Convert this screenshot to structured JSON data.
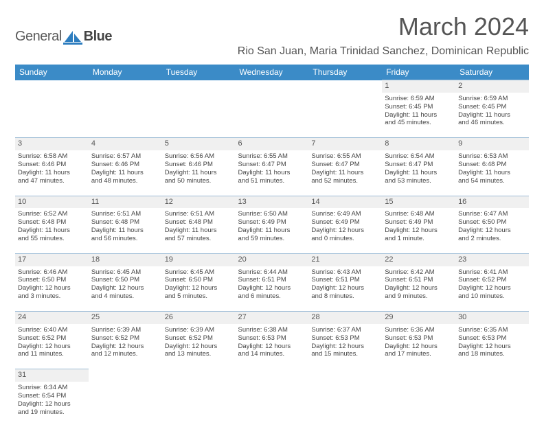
{
  "logo": {
    "part1": "General",
    "part2": "Blue",
    "icon_color": "#2d7dbf"
  },
  "title": "March 2024",
  "subtitle": "Rio San Juan, Maria Trinidad Sanchez, Dominican Republic",
  "header_bg": "#3b8bc7",
  "daynum_bg": "#f0f0f0",
  "border_color": "#9dbcd6",
  "days": [
    "Sunday",
    "Monday",
    "Tuesday",
    "Wednesday",
    "Thursday",
    "Friday",
    "Saturday"
  ],
  "weeks": [
    [
      null,
      null,
      null,
      null,
      null,
      {
        "n": "1",
        "sr": "Sunrise: 6:59 AM",
        "ss": "Sunset: 6:45 PM",
        "d1": "Daylight: 11 hours",
        "d2": "and 45 minutes."
      },
      {
        "n": "2",
        "sr": "Sunrise: 6:59 AM",
        "ss": "Sunset: 6:45 PM",
        "d1": "Daylight: 11 hours",
        "d2": "and 46 minutes."
      }
    ],
    [
      {
        "n": "3",
        "sr": "Sunrise: 6:58 AM",
        "ss": "Sunset: 6:46 PM",
        "d1": "Daylight: 11 hours",
        "d2": "and 47 minutes."
      },
      {
        "n": "4",
        "sr": "Sunrise: 6:57 AM",
        "ss": "Sunset: 6:46 PM",
        "d1": "Daylight: 11 hours",
        "d2": "and 48 minutes."
      },
      {
        "n": "5",
        "sr": "Sunrise: 6:56 AM",
        "ss": "Sunset: 6:46 PM",
        "d1": "Daylight: 11 hours",
        "d2": "and 50 minutes."
      },
      {
        "n": "6",
        "sr": "Sunrise: 6:55 AM",
        "ss": "Sunset: 6:47 PM",
        "d1": "Daylight: 11 hours",
        "d2": "and 51 minutes."
      },
      {
        "n": "7",
        "sr": "Sunrise: 6:55 AM",
        "ss": "Sunset: 6:47 PM",
        "d1": "Daylight: 11 hours",
        "d2": "and 52 minutes."
      },
      {
        "n": "8",
        "sr": "Sunrise: 6:54 AM",
        "ss": "Sunset: 6:47 PM",
        "d1": "Daylight: 11 hours",
        "d2": "and 53 minutes."
      },
      {
        "n": "9",
        "sr": "Sunrise: 6:53 AM",
        "ss": "Sunset: 6:48 PM",
        "d1": "Daylight: 11 hours",
        "d2": "and 54 minutes."
      }
    ],
    [
      {
        "n": "10",
        "sr": "Sunrise: 6:52 AM",
        "ss": "Sunset: 6:48 PM",
        "d1": "Daylight: 11 hours",
        "d2": "and 55 minutes."
      },
      {
        "n": "11",
        "sr": "Sunrise: 6:51 AM",
        "ss": "Sunset: 6:48 PM",
        "d1": "Daylight: 11 hours",
        "d2": "and 56 minutes."
      },
      {
        "n": "12",
        "sr": "Sunrise: 6:51 AM",
        "ss": "Sunset: 6:48 PM",
        "d1": "Daylight: 11 hours",
        "d2": "and 57 minutes."
      },
      {
        "n": "13",
        "sr": "Sunrise: 6:50 AM",
        "ss": "Sunset: 6:49 PM",
        "d1": "Daylight: 11 hours",
        "d2": "and 59 minutes."
      },
      {
        "n": "14",
        "sr": "Sunrise: 6:49 AM",
        "ss": "Sunset: 6:49 PM",
        "d1": "Daylight: 12 hours",
        "d2": "and 0 minutes."
      },
      {
        "n": "15",
        "sr": "Sunrise: 6:48 AM",
        "ss": "Sunset: 6:49 PM",
        "d1": "Daylight: 12 hours",
        "d2": "and 1 minute."
      },
      {
        "n": "16",
        "sr": "Sunrise: 6:47 AM",
        "ss": "Sunset: 6:50 PM",
        "d1": "Daylight: 12 hours",
        "d2": "and 2 minutes."
      }
    ],
    [
      {
        "n": "17",
        "sr": "Sunrise: 6:46 AM",
        "ss": "Sunset: 6:50 PM",
        "d1": "Daylight: 12 hours",
        "d2": "and 3 minutes."
      },
      {
        "n": "18",
        "sr": "Sunrise: 6:45 AM",
        "ss": "Sunset: 6:50 PM",
        "d1": "Daylight: 12 hours",
        "d2": "and 4 minutes."
      },
      {
        "n": "19",
        "sr": "Sunrise: 6:45 AM",
        "ss": "Sunset: 6:50 PM",
        "d1": "Daylight: 12 hours",
        "d2": "and 5 minutes."
      },
      {
        "n": "20",
        "sr": "Sunrise: 6:44 AM",
        "ss": "Sunset: 6:51 PM",
        "d1": "Daylight: 12 hours",
        "d2": "and 6 minutes."
      },
      {
        "n": "21",
        "sr": "Sunrise: 6:43 AM",
        "ss": "Sunset: 6:51 PM",
        "d1": "Daylight: 12 hours",
        "d2": "and 8 minutes."
      },
      {
        "n": "22",
        "sr": "Sunrise: 6:42 AM",
        "ss": "Sunset: 6:51 PM",
        "d1": "Daylight: 12 hours",
        "d2": "and 9 minutes."
      },
      {
        "n": "23",
        "sr": "Sunrise: 6:41 AM",
        "ss": "Sunset: 6:52 PM",
        "d1": "Daylight: 12 hours",
        "d2": "and 10 minutes."
      }
    ],
    [
      {
        "n": "24",
        "sr": "Sunrise: 6:40 AM",
        "ss": "Sunset: 6:52 PM",
        "d1": "Daylight: 12 hours",
        "d2": "and 11 minutes."
      },
      {
        "n": "25",
        "sr": "Sunrise: 6:39 AM",
        "ss": "Sunset: 6:52 PM",
        "d1": "Daylight: 12 hours",
        "d2": "and 12 minutes."
      },
      {
        "n": "26",
        "sr": "Sunrise: 6:39 AM",
        "ss": "Sunset: 6:52 PM",
        "d1": "Daylight: 12 hours",
        "d2": "and 13 minutes."
      },
      {
        "n": "27",
        "sr": "Sunrise: 6:38 AM",
        "ss": "Sunset: 6:53 PM",
        "d1": "Daylight: 12 hours",
        "d2": "and 14 minutes."
      },
      {
        "n": "28",
        "sr": "Sunrise: 6:37 AM",
        "ss": "Sunset: 6:53 PM",
        "d1": "Daylight: 12 hours",
        "d2": "and 15 minutes."
      },
      {
        "n": "29",
        "sr": "Sunrise: 6:36 AM",
        "ss": "Sunset: 6:53 PM",
        "d1": "Daylight: 12 hours",
        "d2": "and 17 minutes."
      },
      {
        "n": "30",
        "sr": "Sunrise: 6:35 AM",
        "ss": "Sunset: 6:53 PM",
        "d1": "Daylight: 12 hours",
        "d2": "and 18 minutes."
      }
    ],
    [
      {
        "n": "31",
        "sr": "Sunrise: 6:34 AM",
        "ss": "Sunset: 6:54 PM",
        "d1": "Daylight: 12 hours",
        "d2": "and 19 minutes."
      },
      null,
      null,
      null,
      null,
      null,
      null
    ]
  ]
}
